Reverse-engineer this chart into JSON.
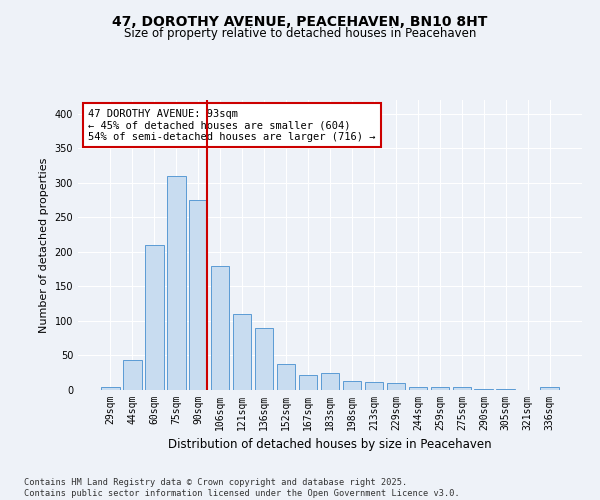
{
  "title_line1": "47, DOROTHY AVENUE, PEACEHAVEN, BN10 8HT",
  "title_line2": "Size of property relative to detached houses in Peacehaven",
  "xlabel": "Distribution of detached houses by size in Peacehaven",
  "ylabel": "Number of detached properties",
  "categories": [
    "29sqm",
    "44sqm",
    "60sqm",
    "75sqm",
    "90sqm",
    "106sqm",
    "121sqm",
    "136sqm",
    "152sqm",
    "167sqm",
    "183sqm",
    "198sqm",
    "213sqm",
    "229sqm",
    "244sqm",
    "259sqm",
    "275sqm",
    "290sqm",
    "305sqm",
    "321sqm",
    "336sqm"
  ],
  "values": [
    5,
    44,
    210,
    310,
    275,
    180,
    110,
    90,
    38,
    22,
    25,
    13,
    12,
    10,
    4,
    5,
    5,
    2,
    1,
    0,
    4
  ],
  "bar_color": "#c8dcf0",
  "bar_edge_color": "#5b9bd5",
  "vline_color": "#cc0000",
  "vline_x_index": 4,
  "annotation_text": "47 DOROTHY AVENUE: 93sqm\n← 45% of detached houses are smaller (604)\n54% of semi-detached houses are larger (716) →",
  "annotation_box_facecolor": "#ffffff",
  "annotation_box_edgecolor": "#cc0000",
  "ylim": [
    0,
    420
  ],
  "yticks": [
    0,
    50,
    100,
    150,
    200,
    250,
    300,
    350,
    400
  ],
  "footer": "Contains HM Land Registry data © Crown copyright and database right 2025.\nContains public sector information licensed under the Open Government Licence v3.0.",
  "bg_color": "#eef2f8",
  "plot_bg_color": "#eef2f8",
  "title_fontsize": 10,
  "subtitle_fontsize": 8.5,
  "ylabel_fontsize": 8,
  "xlabel_fontsize": 8.5,
  "tick_fontsize": 7,
  "footer_fontsize": 6.2,
  "ann_fontsize": 7.5
}
